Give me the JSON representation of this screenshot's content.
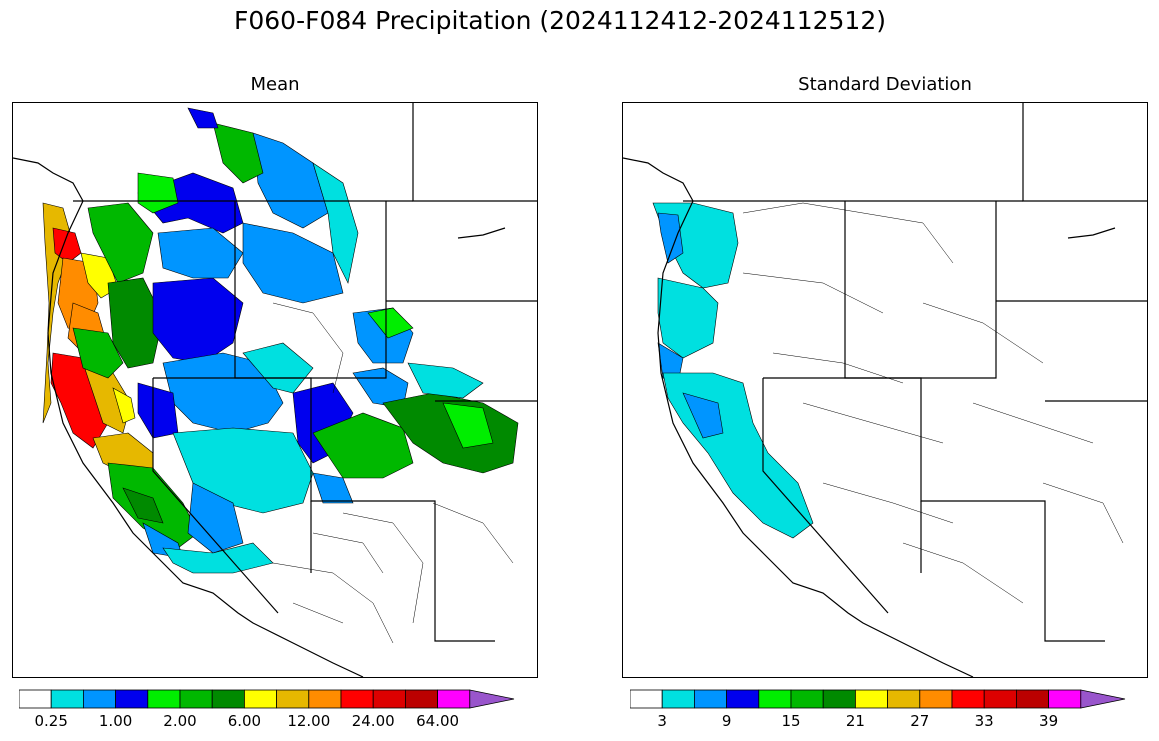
{
  "title": "F060-F084 Precipitation (2024112412-2024112512)",
  "panels": [
    {
      "title": "Mean"
    },
    {
      "title": "Standard Deviation"
    }
  ],
  "colorbar_colors": [
    "#ffffff",
    "#00e0e0",
    "#0095ff",
    "#0000ee",
    "#00ee00",
    "#00b800",
    "#008a00",
    "#ffff00",
    "#e6b800",
    "#ff8c00",
    "#ff0000",
    "#dd0000",
    "#bb0000",
    "#ff00ff",
    "#9955cc"
  ],
  "mean_colorbar_ticks": [
    "0.25",
    "1.00",
    "2.00",
    "6.00",
    "12.00",
    "24.00",
    "64.00"
  ],
  "std_colorbar_ticks": [
    "3",
    "9",
    "15",
    "21",
    "27",
    "33",
    "39"
  ]
}
